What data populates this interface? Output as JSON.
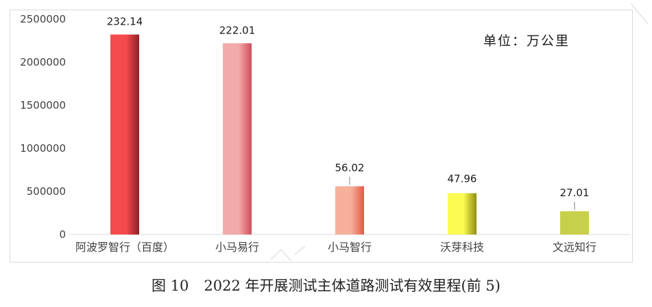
{
  "chart_data": {
    "type": "bar",
    "categories": [
      "阿波罗智行（百度）",
      "小马易行",
      "小马智行",
      "沃芽科技",
      "文远知行"
    ],
    "values": [
      2321400,
      2220100,
      560200,
      479600,
      270100
    ],
    "data_labels": [
      "232.14",
      "222.01",
      "56.02",
      "47.96",
      "27.01"
    ],
    "ylim": [
      0,
      2500000
    ],
    "yticks": [
      "0",
      "500000",
      "1000000",
      "1500000",
      "2000000",
      "2500000"
    ],
    "unit_note": "单位：万公里",
    "grid": false,
    "legend": "none",
    "colors": [
      {
        "light": "#f44a4d",
        "dark": "#8e1f28"
      },
      {
        "light": "#f3aaaa",
        "dark": "#d04e5b"
      },
      {
        "light": "#f6b09c",
        "dark": "#e15a44"
      },
      {
        "light": "#fbfb52",
        "dark": "#8e8e12"
      },
      {
        "light": "#c7d04a",
        "dark": "#c7d04a"
      }
    ]
  },
  "caption": {
    "figure_no": "图 10",
    "text": "2022 年开展测试主体道路测试有效里程(前 5)"
  }
}
